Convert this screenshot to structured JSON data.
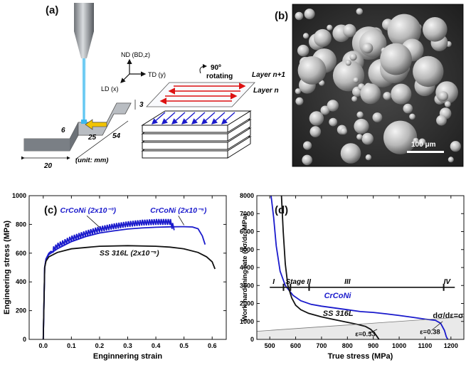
{
  "panels": {
    "a": {
      "label": "(a)",
      "axis_nd": "ND (BD,z)",
      "axis_td": "TD (y)",
      "axis_ld": "LD (x)",
      "rotate_deg": "90º",
      "rotate_word": "rotating",
      "layer_top": "Layer n+1",
      "layer_bottom": "Layer n",
      "dim_20": "20",
      "dim_54": "54",
      "dim_25": "25",
      "dim_6": "6",
      "dim_3": "3",
      "unit": "(unit: mm)"
    },
    "b": {
      "label": "(b)",
      "scalebar": "100 μm"
    },
    "c": {
      "label": "(c)"
    },
    "d": {
      "label": "(d)"
    }
  },
  "chart_data": [
    {
      "panel": "(c)",
      "type": "line",
      "xlabel": "Enginnering strain",
      "ylabel": "Engineering stress (MPa)",
      "xlim": [
        -0.05,
        0.65
      ],
      "ylim": [
        0,
        1000
      ],
      "xticks": [
        "0.0",
        "0.1",
        "0.2",
        "0.3",
        "0.4",
        "0.5",
        "0.6"
      ],
      "yticks": [
        "0",
        "200",
        "400",
        "600",
        "800",
        "1000"
      ],
      "series": [
        {
          "name": "CrCoNi (2x10⁻³)",
          "color": "#1a1acc",
          "serrated": true,
          "x": [
            0.0,
            0.005,
            0.01,
            0.02,
            0.05,
            0.1,
            0.15,
            0.2,
            0.25,
            0.3,
            0.35,
            0.4,
            0.45,
            0.465
          ],
          "y": [
            0,
            500,
            560,
            600,
            650,
            700,
            735,
            765,
            785,
            800,
            810,
            815,
            815,
            760
          ]
        },
        {
          "name": "CrCoNi (2x10⁻⁵)",
          "color": "#1a1acc",
          "serrated": false,
          "x": [
            0.0,
            0.005,
            0.01,
            0.02,
            0.05,
            0.1,
            0.15,
            0.2,
            0.25,
            0.3,
            0.35,
            0.4,
            0.45,
            0.5,
            0.53,
            0.55,
            0.565,
            0.575
          ],
          "y": [
            0,
            500,
            560,
            590,
            630,
            680,
            715,
            740,
            755,
            768,
            775,
            780,
            783,
            784,
            782,
            770,
            720,
            660
          ]
        },
        {
          "name": "SS 316L (2x10⁻⁵)",
          "color": "#111111",
          "serrated": false,
          "x": [
            0.0,
            0.005,
            0.01,
            0.02,
            0.05,
            0.1,
            0.2,
            0.3,
            0.4,
            0.45,
            0.5,
            0.55,
            0.58,
            0.6,
            0.61
          ],
          "y": [
            0,
            500,
            545,
            575,
            605,
            630,
            648,
            652,
            648,
            642,
            630,
            605,
            575,
            540,
            490
          ]
        }
      ],
      "annotations": [
        "CrCoNi (2x10⁻³)",
        "CrCoNi (2x10⁻⁵)",
        "SS 316L (2x10⁻⁵)"
      ]
    },
    {
      "panel": "(d)",
      "type": "line",
      "xlabel": "True stress (MPa)",
      "ylabel": "Work hardening rate (dσ/dε, MPa)",
      "xlim": [
        450,
        1250
      ],
      "ylim": [
        0,
        8000
      ],
      "xticks": [
        "500",
        "600",
        "700",
        "800",
        "900",
        "1000",
        "1100",
        "1200"
      ],
      "yticks": [
        "0",
        "1000",
        "2000",
        "3000",
        "4000",
        "5000",
        "6000",
        "7000",
        "8000"
      ],
      "series": [
        {
          "name": "CrCoNi",
          "color": "#1a1acc",
          "x": [
            505,
            515,
            525,
            540,
            560,
            590,
            620,
            660,
            700,
            750,
            800,
            850,
            900,
            950,
            1000,
            1050,
            1100,
            1140,
            1160,
            1175,
            1182,
            1188
          ],
          "y": [
            8000,
            6800,
            5200,
            3800,
            3000,
            2450,
            2150,
            1950,
            1850,
            1750,
            1650,
            1550,
            1500,
            1420,
            1330,
            1230,
            1130,
            1060,
            900,
            500,
            150,
            0
          ]
        },
        {
          "name": "SS 316L",
          "color": "#111111",
          "x": [
            545,
            552,
            560,
            570,
            585,
            600,
            620,
            650,
            700,
            750,
            800,
            840,
            870,
            890,
            905,
            915,
            922
          ],
          "y": [
            8000,
            6000,
            4200,
            3000,
            2300,
            1900,
            1650,
            1450,
            1250,
            1100,
            950,
            830,
            720,
            560,
            350,
            150,
            0
          ]
        },
        {
          "name": "dσ/dε=σ",
          "color": "#777777",
          "x": [
            450,
            1250
          ],
          "y": [
            450,
            1250
          ]
        }
      ],
      "stage_bar_y": 2900,
      "stage_markers": [
        553,
        580,
        652,
        1172
      ],
      "stage_labels": [
        {
          "text": "I",
          "x": 515
        },
        {
          "text": "Stage II",
          "x": 610
        },
        {
          "text": "III",
          "x": 800
        },
        {
          "text": "IV",
          "x": 1185
        }
      ],
      "annotations": [
        "CrCoNi",
        "SS 316L",
        "ε=0.33",
        "ε=0.38",
        "dσ/dε=σ"
      ]
    }
  ]
}
